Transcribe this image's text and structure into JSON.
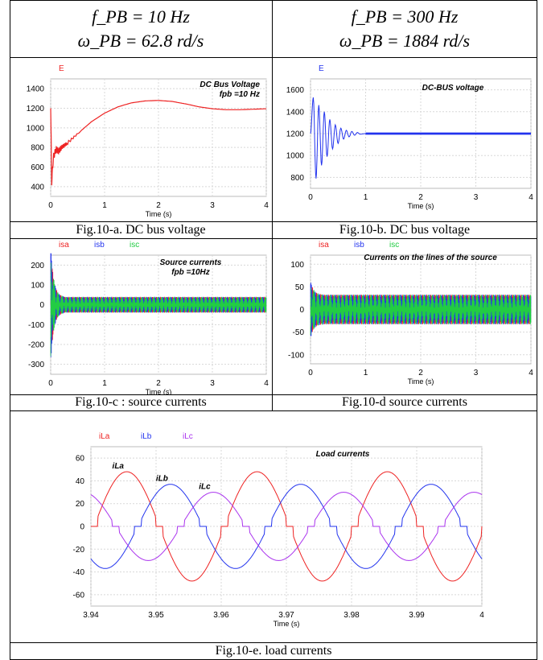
{
  "table": {
    "headers": [
      {
        "line1": "f_PB = 10 Hz",
        "line2": "ω_PB = 62.8 rd/s"
      },
      {
        "line1": "f_PB = 300 Hz",
        "line2": "ω_PB = 1884 rd/s"
      }
    ],
    "captions": {
      "a": "Fig.10-a. DC bus voltage",
      "b": "Fig.10-b. DC bus voltage",
      "c": "Fig.10-c : source currents",
      "d": "Fig.10-d source currents",
      "e": "Fig.10-e. load currents"
    }
  },
  "colors": {
    "red": "#ee2222",
    "blue": "#2233ee",
    "green": "#22cc44",
    "purple": "#aa33ee",
    "grid": "#d8d8d8"
  },
  "chart_data": [
    {
      "id": "a",
      "type": "line",
      "title": "DC Bus Voltage",
      "subtitle": "fpb =10 Hz",
      "xlabel": "Time (s)",
      "ylabel": "",
      "xlim": [
        0,
        4
      ],
      "ylim": [
        300,
        1500
      ],
      "xticks": [
        "0",
        "1",
        "2",
        "3",
        "4"
      ],
      "yticks": [
        "400",
        "600",
        "800",
        "1000",
        "1200",
        "1400"
      ],
      "legend": [
        "E"
      ],
      "grid": true,
      "series": [
        {
          "name": "E",
          "color": "#ee2222",
          "points": [
            [
              0,
              1200
            ],
            [
              0.02,
              450
            ],
            [
              0.05,
              700
            ],
            [
              0.1,
              780
            ],
            [
              0.15,
              760
            ],
            [
              0.2,
              800
            ],
            [
              0.3,
              840
            ],
            [
              0.5,
              940
            ],
            [
              0.75,
              1060
            ],
            [
              1,
              1150
            ],
            [
              1.25,
              1215
            ],
            [
              1.5,
              1255
            ],
            [
              1.75,
              1275
            ],
            [
              2,
              1280
            ],
            [
              2.25,
              1270
            ],
            [
              2.5,
              1245
            ],
            [
              2.75,
              1215
            ],
            [
              3,
              1195
            ],
            [
              3.25,
              1185
            ],
            [
              3.5,
              1185
            ],
            [
              3.75,
              1190
            ],
            [
              4,
              1195
            ]
          ]
        }
      ]
    },
    {
      "id": "b",
      "type": "line",
      "title": "DC-BUS voltage",
      "subtitle": "",
      "xlabel": "Time (s)",
      "ylabel": "",
      "xlim": [
        0,
        4
      ],
      "ylim": [
        700,
        1700
      ],
      "xticks": [
        "0",
        "1",
        "2",
        "3",
        "4"
      ],
      "yticks": [
        "800",
        "1000",
        "1200",
        "1400",
        "1600"
      ],
      "legend": [
        "E"
      ],
      "grid": true,
      "series": [
        {
          "name": "E",
          "color": "#2233ee",
          "points": [
            [
              0,
              1200
            ],
            [
              0.05,
              1530
            ],
            [
              0.1,
              790
            ],
            [
              0.15,
              1460
            ],
            [
              0.2,
              910
            ],
            [
              0.25,
              1400
            ],
            [
              0.3,
              990
            ],
            [
              0.35,
              1330
            ],
            [
              0.4,
              1060
            ],
            [
              0.45,
              1280
            ],
            [
              0.5,
              1110
            ],
            [
              0.55,
              1250
            ],
            [
              0.6,
              1150
            ],
            [
              0.65,
              1230
            ],
            [
              0.7,
              1170
            ],
            [
              0.75,
              1220
            ],
            [
              0.8,
              1185
            ],
            [
              0.85,
              1210
            ],
            [
              0.9,
              1195
            ],
            [
              1,
              1200
            ],
            [
              4,
              1200
            ]
          ]
        }
      ]
    },
    {
      "id": "c",
      "type": "line",
      "title": "Source currents",
      "subtitle": "fpb =10Hz",
      "xlabel": "Time (s)",
      "ylabel": "",
      "xlim": [
        0,
        4
      ],
      "ylim": [
        -350,
        250
      ],
      "xticks": [
        "0",
        "1",
        "2",
        "3",
        "4"
      ],
      "yticks": [
        "200",
        "100",
        "0",
        "-100",
        "-200",
        "-300"
      ],
      "legend": [
        "isa",
        "isb",
        "isc"
      ],
      "grid": true,
      "envelope": {
        "startup_peak": 220,
        "startup_trough": -300,
        "steady_amplitude": 40
      }
    },
    {
      "id": "d",
      "type": "line",
      "title": "Currents on the lines of the source",
      "subtitle": "",
      "xlabel": "Time (s)",
      "ylabel": "",
      "xlim": [
        0,
        4
      ],
      "ylim": [
        -120,
        120
      ],
      "xticks": [
        "0",
        "1",
        "2",
        "3",
        "4"
      ],
      "yticks": [
        "100",
        "50",
        "0",
        "-50",
        "-100"
      ],
      "legend": [
        "isa",
        "isb",
        "isc"
      ],
      "grid": true,
      "envelope": {
        "startup_peak": 65,
        "startup_trough": -62,
        "steady_amplitude": 33
      }
    },
    {
      "id": "e",
      "type": "line",
      "title": "Load currents",
      "subtitle": "",
      "xlabel": "Time (s)",
      "ylabel": "",
      "xlim": [
        3.94,
        4.0
      ],
      "ylim": [
        -70,
        70
      ],
      "xticks": [
        "3.94",
        "3.95",
        "3.96",
        "3.97",
        "3.98",
        "3.99",
        "4"
      ],
      "yticks": [
        "60",
        "40",
        "20",
        "0",
        "-20",
        "-40",
        "-60"
      ],
      "legend": [
        "iLa",
        "iLb",
        "iLc"
      ],
      "grid": true,
      "annotations": [
        "iLa",
        "iLb",
        "iLc"
      ],
      "frequency_hz": 50,
      "series": [
        {
          "name": "iLa",
          "color": "#ee2222",
          "peak": 48,
          "phase_peak_time": 3.9455
        },
        {
          "name": "iLb",
          "color": "#2233ee",
          "peak": 37,
          "phase_peak_time": 3.9522
        },
        {
          "name": "iLc",
          "color": "#aa33ee",
          "peak": 30,
          "phase_peak_time": 3.9588
        }
      ]
    }
  ]
}
